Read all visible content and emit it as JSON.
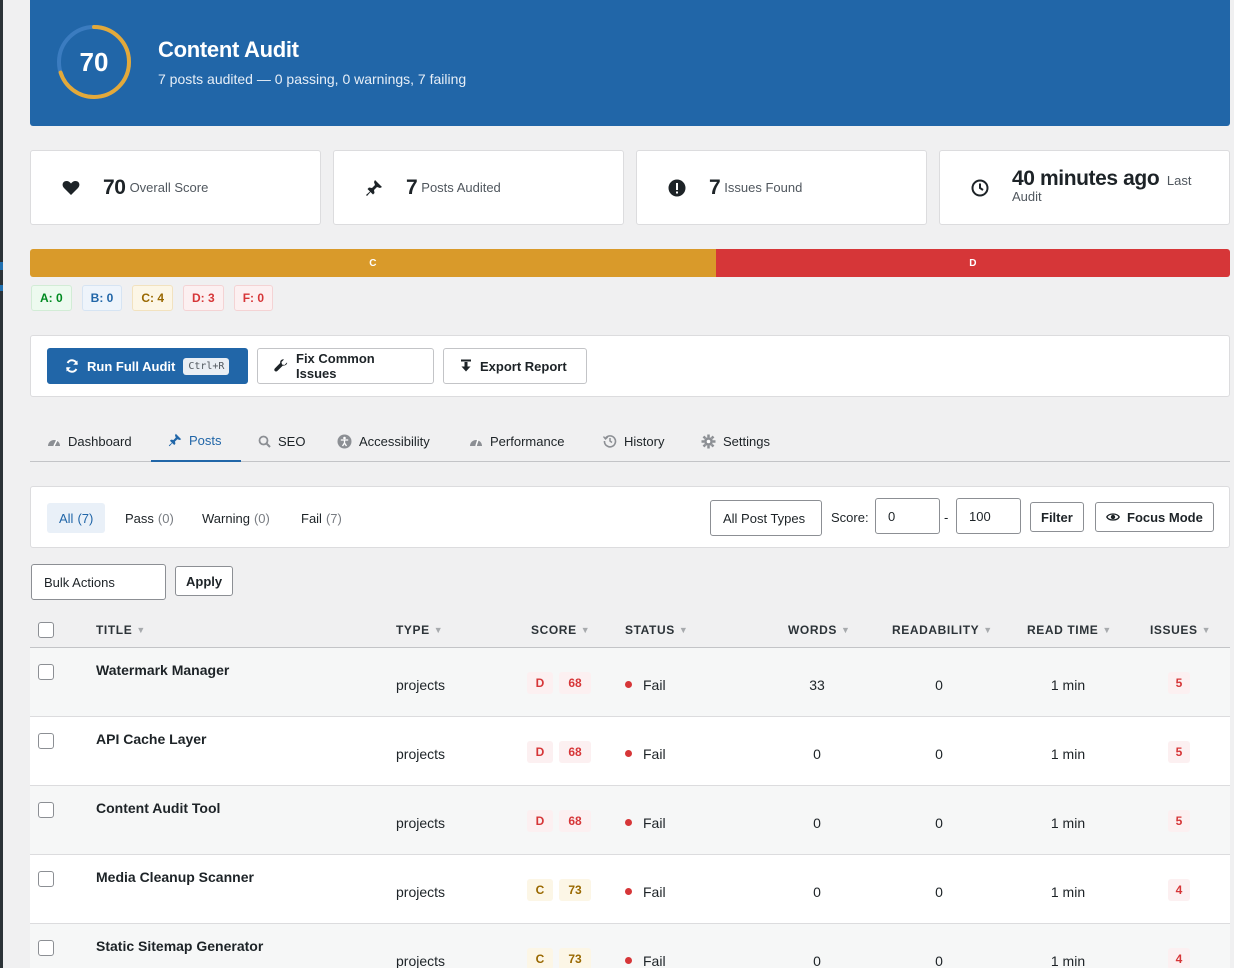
{
  "hero": {
    "score": "70",
    "score_fraction": 0.7,
    "title": "Content Audit",
    "subtitle": "7 posts audited — 0 passing, 0 warnings, 7 failing"
  },
  "stats": [
    {
      "icon": "heart-icon",
      "value": "70",
      "label": "Overall Score"
    },
    {
      "icon": "pin-icon",
      "value": "7",
      "label": "Posts Audited"
    },
    {
      "icon": "exclamation-icon",
      "value": "7",
      "label": "Issues Found"
    },
    {
      "icon": "clock-icon",
      "value": "40 minutes ago",
      "label_line1": "Last",
      "label_line2": "Audit"
    }
  ],
  "grade_bar": {
    "segments": [
      {
        "label": "C",
        "count": 4,
        "color": "#d99a2a"
      },
      {
        "label": "D",
        "count": 3,
        "color": "#d63638"
      }
    ]
  },
  "grade_chips": [
    {
      "label": "A: 0",
      "color": "#008a20",
      "bg": "#edfaef",
      "border": "#d2ecd6"
    },
    {
      "label": "B: 0",
      "color": "#2166a8",
      "bg": "#eef4fb",
      "border": "#d6e4f3"
    },
    {
      "label": "C: 4",
      "color": "#996800",
      "bg": "#fcf6e6",
      "border": "#f2e2bf"
    },
    {
      "label": "D: 3",
      "color": "#d63638",
      "bg": "#fcf0f1",
      "border": "#f4d3d4"
    },
    {
      "label": "F: 0",
      "color": "#d63638",
      "bg": "#fcf0f1",
      "border": "#f4d3d4"
    }
  ],
  "actions": {
    "run_label": "Run Full Audit",
    "run_shortcut": "Ctrl+R",
    "fix_label": "Fix Common Issues",
    "export_label": "Export Report"
  },
  "tabs": [
    {
      "label": "Dashboard",
      "icon": "dashboard-icon"
    },
    {
      "label": "Posts",
      "icon": "pin-icon",
      "active": true
    },
    {
      "label": "SEO",
      "icon": "search-icon"
    },
    {
      "label": "Accessibility",
      "icon": "accessibility-icon"
    },
    {
      "label": "Performance",
      "icon": "gauge-icon"
    },
    {
      "label": "History",
      "icon": "history-icon"
    },
    {
      "label": "Settings",
      "icon": "gear-icon"
    }
  ],
  "filters": {
    "status_tabs": [
      {
        "label": "All",
        "count": "(7)"
      },
      {
        "label": "Pass",
        "count": "(0)"
      },
      {
        "label": "Warning",
        "count": "(0)"
      },
      {
        "label": "Fail",
        "count": "(7)"
      }
    ],
    "post_type": "All Post Types",
    "score_label": "Score:",
    "score_min": "0",
    "score_sep": "-",
    "score_max": "100",
    "filter_label": "Filter",
    "focus_label": "Focus Mode"
  },
  "bulk": {
    "select_label": "Bulk Actions",
    "apply_label": "Apply"
  },
  "table": {
    "columns": [
      "TITLE",
      "TYPE",
      "SCORE",
      "STATUS",
      "WORDS",
      "READABILITY",
      "READ TIME",
      "ISSUES"
    ],
    "rows": [
      {
        "title": "Watermark Manager",
        "type": "projects",
        "grade": "D",
        "score": "68",
        "status": "Fail",
        "words": "33",
        "readability": "0",
        "read_time": "1 min",
        "issues": "5"
      },
      {
        "title": "API Cache Layer",
        "type": "projects",
        "grade": "D",
        "score": "68",
        "status": "Fail",
        "words": "0",
        "readability": "0",
        "read_time": "1 min",
        "issues": "5"
      },
      {
        "title": "Content Audit Tool",
        "type": "projects",
        "grade": "D",
        "score": "68",
        "status": "Fail",
        "words": "0",
        "readability": "0",
        "read_time": "1 min",
        "issues": "5"
      },
      {
        "title": "Media Cleanup Scanner",
        "type": "projects",
        "grade": "C",
        "score": "73",
        "status": "Fail",
        "words": "0",
        "readability": "0",
        "read_time": "1 min",
        "issues": "4"
      },
      {
        "title": "Static Sitemap Generator",
        "type": "projects",
        "grade": "C",
        "score": "73",
        "status": "Fail",
        "words": "0",
        "readability": "0",
        "read_time": "1 min",
        "issues": "4"
      }
    ]
  },
  "colors": {
    "brand": "#2166a8",
    "fail": "#d63638",
    "grade_c": "#d99a2a",
    "ring_track": "#3b7cc0"
  }
}
